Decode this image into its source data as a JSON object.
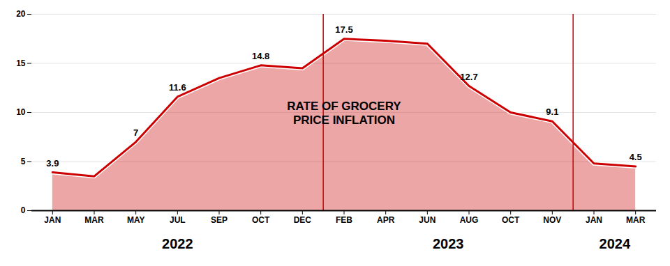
{
  "chart_data": {
    "type": "area",
    "categories": [
      "JAN",
      "MAR",
      "MAY",
      "JUL",
      "SEP",
      "OCT",
      "DEC",
      "FEB",
      "APR",
      "JUN",
      "AUG",
      "OCT",
      "NOV",
      "JAN",
      "MAR"
    ],
    "values": [
      3.9,
      3.5,
      7.0,
      11.6,
      13.5,
      14.8,
      14.5,
      17.5,
      17.3,
      17.0,
      12.7,
      10.0,
      9.1,
      4.8,
      4.5
    ],
    "value_labels": [
      "3.9",
      null,
      "7",
      "11.6",
      null,
      "14.8",
      null,
      "17.5",
      null,
      null,
      "12.7",
      null,
      "9.1",
      null,
      "4.5"
    ],
    "data_labels": true,
    "annotations": [
      "RATE OF GROCERY",
      "PRICE INFLATION"
    ],
    "groups": [
      {
        "label": "2022",
        "count": 7
      },
      {
        "label": "2023",
        "count": 6
      },
      {
        "label": "2024",
        "count": 2
      }
    ],
    "color": "#cc0000",
    "ylim": [
      0,
      20
    ],
    "yticks": [
      0,
      5,
      10,
      15,
      20
    ],
    "grid": true
  }
}
